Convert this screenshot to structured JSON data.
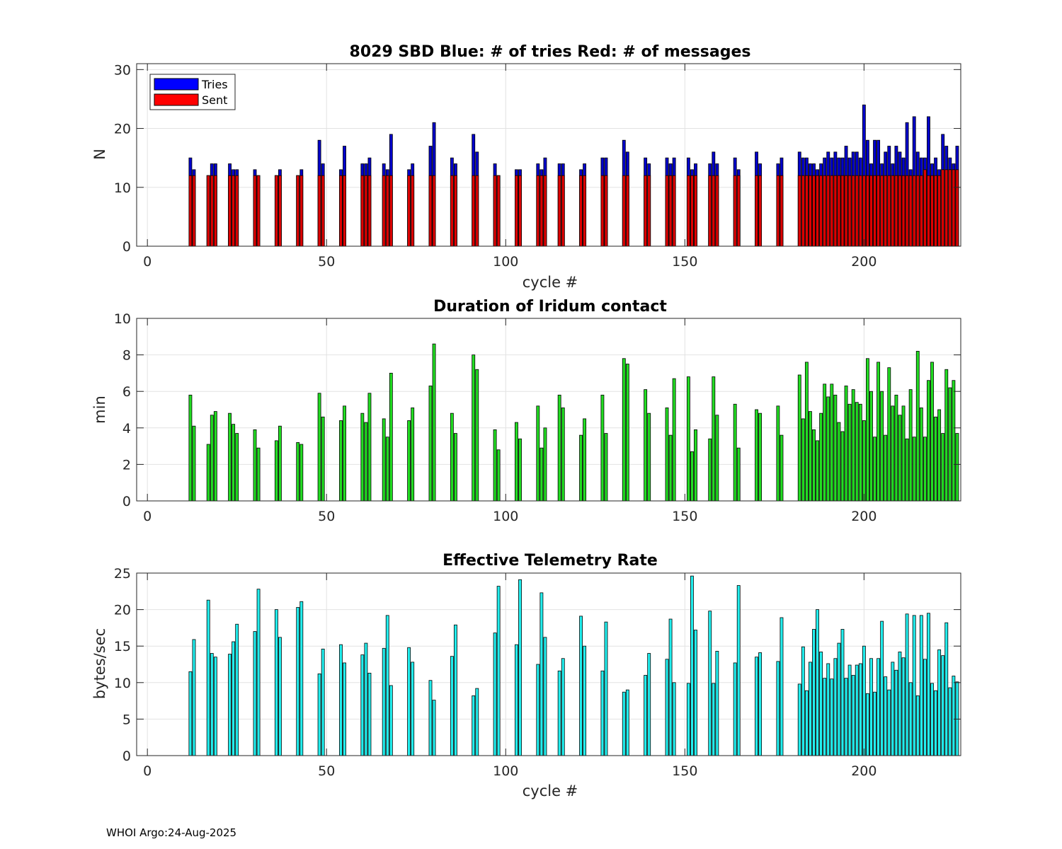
{
  "chart_data": [
    {
      "type": "bar",
      "subtype": "overlaid",
      "title": "8029 SBD  Blue: # of tries   Red: # of messages",
      "xlabel": "cycle #",
      "ylabel": "N",
      "xlim": [
        -3,
        227
      ],
      "ylim": [
        0,
        31
      ],
      "xticks": [
        0,
        50,
        100,
        150,
        200
      ],
      "yticks": [
        0,
        10,
        20,
        30
      ],
      "grid": true,
      "legend": {
        "placement": "top-left",
        "entries": [
          {
            "label": "Tries",
            "color": "#0000ff"
          },
          {
            "label": "Sent",
            "color": "#ff0000"
          }
        ]
      },
      "x": [
        12,
        13,
        17,
        18,
        19,
        23,
        24,
        25,
        30,
        31,
        36,
        37,
        42,
        43,
        48,
        49,
        54,
        55,
        60,
        61,
        62,
        66,
        67,
        68,
        73,
        74,
        79,
        80,
        85,
        86,
        91,
        92,
        97,
        98,
        103,
        104,
        109,
        110,
        111,
        115,
        116,
        121,
        122,
        127,
        128,
        133,
        134,
        139,
        140,
        145,
        146,
        147,
        151,
        152,
        153,
        157,
        158,
        159,
        164,
        165,
        170,
        171,
        176,
        177,
        182,
        183,
        184,
        185,
        186,
        187,
        188,
        189,
        190,
        191,
        192,
        193,
        194,
        195,
        196,
        197,
        198,
        199,
        200,
        201,
        202,
        203,
        204,
        205,
        206,
        207,
        208,
        209,
        210,
        211,
        212,
        213,
        214,
        215,
        216,
        217,
        218,
        219,
        220,
        221,
        222,
        223,
        224,
        225,
        226
      ],
      "series": [
        {
          "name": "Tries",
          "color": "#0000cc",
          "values": [
            15,
            13,
            12,
            14,
            14,
            14,
            13,
            13,
            13,
            12,
            12,
            13,
            12,
            13,
            18,
            14,
            13,
            17,
            14,
            14,
            15,
            14,
            13,
            19,
            13,
            14,
            17,
            21,
            15,
            14,
            19,
            16,
            14,
            12,
            13,
            13,
            14,
            13,
            15,
            14,
            14,
            13,
            14,
            15,
            15,
            18,
            16,
            15,
            14,
            15,
            14,
            15,
            15,
            13,
            14,
            14,
            16,
            14,
            15,
            13,
            16,
            14,
            14,
            15,
            16,
            15,
            15,
            14,
            14,
            13,
            14,
            15,
            16,
            15,
            16,
            15,
            15,
            17,
            15,
            16,
            16,
            15,
            24,
            18,
            14,
            18,
            18,
            14,
            16,
            17,
            14,
            17,
            16,
            15,
            21,
            13,
            22,
            16,
            15,
            15,
            22,
            14,
            15,
            13,
            19,
            17,
            15,
            14,
            17
          ]
        },
        {
          "name": "Sent",
          "color": "#dd0000",
          "values": [
            12,
            12,
            12,
            12,
            12,
            12,
            12,
            12,
            12,
            12,
            12,
            12,
            12,
            12,
            12,
            12,
            12,
            12,
            12,
            12,
            12,
            12,
            12,
            12,
            12,
            12,
            12,
            12,
            12,
            12,
            12,
            12,
            12,
            12,
            12,
            12,
            12,
            12,
            12,
            12,
            12,
            12,
            12,
            12,
            12,
            12,
            12,
            12,
            12,
            12,
            12,
            12,
            12,
            12,
            12,
            12,
            12,
            12,
            12,
            12,
            12,
            12,
            12,
            12,
            12,
            12,
            12,
            12,
            12,
            12,
            12,
            12,
            12,
            12,
            12,
            12,
            12,
            12,
            12,
            12,
            12,
            12,
            12,
            12,
            12,
            12,
            12,
            12,
            12,
            12,
            12,
            12,
            12,
            12,
            12,
            12,
            12,
            12,
            12,
            13,
            12,
            12,
            12,
            12,
            13,
            13,
            13,
            13,
            13
          ]
        }
      ]
    },
    {
      "type": "bar",
      "title": "Duration of Iridum contact",
      "xlabel": "",
      "ylabel": "min",
      "xlim": [
        -3,
        227
      ],
      "ylim": [
        0,
        10
      ],
      "xticks": [
        0,
        50,
        100,
        150,
        200
      ],
      "yticks": [
        0,
        2,
        4,
        6,
        8,
        10
      ],
      "grid": true,
      "series": [
        {
          "name": "Duration",
          "color": "#22dd22",
          "x": [
            12,
            13,
            17,
            18,
            19,
            23,
            24,
            25,
            30,
            31,
            36,
            37,
            42,
            43,
            48,
            49,
            54,
            55,
            60,
            61,
            62,
            66,
            67,
            68,
            73,
            74,
            79,
            80,
            85,
            86,
            91,
            92,
            97,
            98,
            103,
            104,
            109,
            110,
            111,
            115,
            116,
            121,
            122,
            127,
            128,
            133,
            134,
            139,
            140,
            145,
            146,
            147,
            151,
            152,
            153,
            157,
            158,
            159,
            164,
            165,
            170,
            171,
            176,
            177,
            182,
            183,
            184,
            185,
            186,
            187,
            188,
            189,
            190,
            191,
            192,
            193,
            194,
            195,
            196,
            197,
            198,
            199,
            200,
            201,
            202,
            203,
            204,
            205,
            206,
            207,
            208,
            209,
            210,
            211,
            212,
            213,
            214,
            215,
            216,
            217,
            218,
            219,
            220,
            221,
            222,
            223,
            224,
            225,
            226
          ],
          "values": [
            5.8,
            4.1,
            3.1,
            4.7,
            4.9,
            4.8,
            4.2,
            3.7,
            3.9,
            2.9,
            3.3,
            4.1,
            3.2,
            3.1,
            5.9,
            4.6,
            4.4,
            5.2,
            4.8,
            4.3,
            5.9,
            4.5,
            3.5,
            7.0,
            4.4,
            5.1,
            6.3,
            8.6,
            4.8,
            3.7,
            8.0,
            7.2,
            3.9,
            2.8,
            4.3,
            3.4,
            5.2,
            2.9,
            4.0,
            5.8,
            5.1,
            3.6,
            4.5,
            5.8,
            3.7,
            7.8,
            7.5,
            6.1,
            4.8,
            5.1,
            3.6,
            6.7,
            6.8,
            2.7,
            3.9,
            3.4,
            6.8,
            4.7,
            5.3,
            2.9,
            5.0,
            4.8,
            5.2,
            3.6,
            6.9,
            4.5,
            7.6,
            4.9,
            3.9,
            3.3,
            4.8,
            6.4,
            5.7,
            6.4,
            5.8,
            4.3,
            3.8,
            6.3,
            5.3,
            6.1,
            5.4,
            5.3,
            4.4,
            7.8,
            6.0,
            3.5,
            7.6,
            6.0,
            3.6,
            7.3,
            5.2,
            5.8,
            4.7,
            5.2,
            3.4,
            6.1,
            3.5,
            8.2,
            5.1,
            3.5,
            6.6,
            7.6,
            4.6,
            5.0,
            3.7,
            7.2,
            6.2,
            6.6,
            3.7
          ]
        }
      ]
    },
    {
      "type": "bar",
      "title": "Effective Telemetry Rate",
      "xlabel": "cycle #",
      "ylabel": "bytes/sec",
      "xlim": [
        -3,
        227
      ],
      "ylim": [
        0,
        25
      ],
      "xticks": [
        0,
        50,
        100,
        150,
        200
      ],
      "yticks": [
        0,
        5,
        10,
        15,
        20,
        25
      ],
      "grid": true,
      "series": [
        {
          "name": "Rate",
          "color": "#22eeee",
          "x": [
            12,
            13,
            17,
            18,
            19,
            23,
            24,
            25,
            30,
            31,
            36,
            37,
            42,
            43,
            48,
            49,
            54,
            55,
            60,
            61,
            62,
            66,
            67,
            68,
            73,
            74,
            79,
            80,
            85,
            86,
            91,
            92,
            97,
            98,
            103,
            104,
            109,
            110,
            111,
            115,
            116,
            121,
            122,
            127,
            128,
            133,
            134,
            139,
            140,
            145,
            146,
            147,
            151,
            152,
            153,
            157,
            158,
            159,
            164,
            165,
            170,
            171,
            176,
            177,
            182,
            183,
            184,
            185,
            186,
            187,
            188,
            189,
            190,
            191,
            192,
            193,
            194,
            195,
            196,
            197,
            198,
            199,
            200,
            201,
            202,
            203,
            204,
            205,
            206,
            207,
            208,
            209,
            210,
            211,
            212,
            213,
            214,
            215,
            216,
            217,
            218,
            219,
            220,
            221,
            222,
            223,
            224,
            225,
            226
          ],
          "values": [
            11.5,
            15.9,
            21.3,
            14.0,
            13.5,
            13.9,
            15.6,
            18.0,
            17.0,
            22.8,
            20.0,
            16.2,
            20.3,
            21.1,
            11.2,
            14.6,
            15.2,
            12.7,
            13.8,
            15.4,
            11.3,
            14.7,
            19.2,
            9.6,
            14.8,
            12.8,
            10.3,
            7.6,
            13.6,
            17.9,
            8.2,
            9.2,
            16.8,
            23.2,
            15.2,
            24.1,
            12.5,
            22.3,
            16.2,
            11.6,
            13.3,
            19.1,
            15.0,
            11.6,
            18.3,
            8.7,
            9.0,
            11.0,
            14.0,
            13.2,
            18.7,
            10.0,
            9.9,
            24.6,
            17.2,
            19.8,
            9.9,
            14.3,
            12.7,
            23.3,
            13.5,
            14.1,
            12.9,
            18.9,
            9.8,
            14.9,
            8.9,
            12.8,
            17.3,
            20.0,
            14.2,
            10.6,
            12.6,
            10.5,
            13.3,
            15.4,
            17.3,
            10.6,
            12.4,
            11.0,
            12.4,
            12.6,
            15.0,
            8.5,
            13.3,
            8.7,
            13.3,
            18.4,
            10.8,
            9.0,
            12.8,
            11.7,
            14.2,
            13.4,
            19.4,
            10.0,
            19.2,
            8.2,
            19.2,
            13.2,
            19.5,
            9.9,
            8.9,
            14.5,
            13.7,
            18.2,
            9.3,
            10.9,
            10.1
          ]
        }
      ]
    }
  ],
  "footer": "WHOI Argo:24-Aug-2025"
}
